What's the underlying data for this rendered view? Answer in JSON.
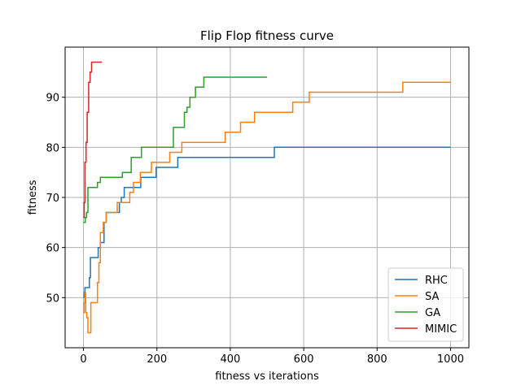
{
  "chart_data": {
    "type": "line",
    "title": "Flip Flop fitness curve",
    "xlabel": "fitness vs iterations",
    "ylabel": "fitness",
    "xlim": [
      -50,
      1050
    ],
    "ylim": [
      40,
      100
    ],
    "xticks": [
      0,
      200,
      400,
      600,
      800,
      1000
    ],
    "yticks": [
      50,
      60,
      70,
      80,
      90
    ],
    "grid": true,
    "legend_position": "lower-right",
    "series": [
      {
        "name": "RHC",
        "color": "#1f77b4",
        "x": [
          0,
          2,
          2,
          4,
          4,
          16,
          16,
          19,
          19,
          22,
          22,
          40,
          40,
          46,
          46,
          56,
          56,
          62,
          62,
          73,
          73,
          98,
          98,
          103,
          103,
          111,
          111,
          138,
          138,
          156,
          156,
          186,
          186,
          198,
          198,
          257,
          257,
          520,
          520,
          1000
        ],
        "y": [
          50,
          50,
          51,
          51,
          52,
          52,
          54,
          54,
          58,
          58,
          58,
          58,
          60,
          60,
          61,
          61,
          65,
          65,
          67,
          67,
          67,
          67,
          69,
          69,
          70,
          70,
          72,
          72,
          72,
          72,
          74,
          74,
          74,
          74,
          76,
          76,
          78,
          78,
          80,
          80
        ]
      },
      {
        "name": "SA",
        "color": "#ff7f0e",
        "x": [
          0,
          2,
          2,
          4,
          4,
          6,
          6,
          9,
          9,
          12,
          12,
          16,
          16,
          20,
          20,
          38,
          38,
          42,
          42,
          46,
          46,
          54,
          54,
          62,
          62,
          92,
          92,
          118,
          118,
          126,
          126,
          136,
          136,
          155,
          155,
          185,
          185,
          235,
          235,
          268,
          268,
          386,
          386,
          428,
          428,
          466,
          466,
          570,
          570,
          615,
          615,
          870,
          870,
          1000
        ],
        "y": [
          47,
          47,
          49,
          49,
          51,
          51,
          47,
          47,
          46,
          46,
          43,
          43,
          43,
          43,
          49,
          49,
          53,
          53,
          57,
          57,
          63,
          63,
          65,
          65,
          67,
          67,
          69,
          69,
          69,
          69,
          71,
          71,
          73,
          73,
          75,
          75,
          77,
          77,
          79,
          79,
          81,
          81,
          83,
          83,
          85,
          85,
          87,
          87,
          89,
          89,
          91,
          91,
          93,
          93
        ]
      },
      {
        "name": "GA",
        "color": "#2ca02c",
        "x": [
          0,
          5,
          5,
          8,
          8,
          12,
          12,
          38,
          38,
          46,
          46,
          106,
          106,
          130,
          130,
          158,
          158,
          245,
          245,
          275,
          275,
          282,
          282,
          290,
          290,
          305,
          305,
          328,
          328,
          500
        ],
        "y": [
          65,
          65,
          66,
          66,
          67,
          67,
          72,
          72,
          73,
          73,
          74,
          74,
          75,
          75,
          78,
          78,
          80,
          80,
          84,
          84,
          87,
          87,
          88,
          88,
          90,
          90,
          92,
          92,
          94,
          94
        ]
      },
      {
        "name": "MIMIC",
        "color": "#d62728",
        "x": [
          0,
          2,
          2,
          4,
          4,
          7,
          7,
          10,
          10,
          14,
          14,
          18,
          18,
          22,
          22,
          26,
          26,
          50
        ],
        "y": [
          66,
          66,
          69,
          69,
          77,
          77,
          81,
          81,
          87,
          87,
          93,
          93,
          95,
          95,
          97,
          97,
          97,
          97
        ]
      }
    ]
  }
}
